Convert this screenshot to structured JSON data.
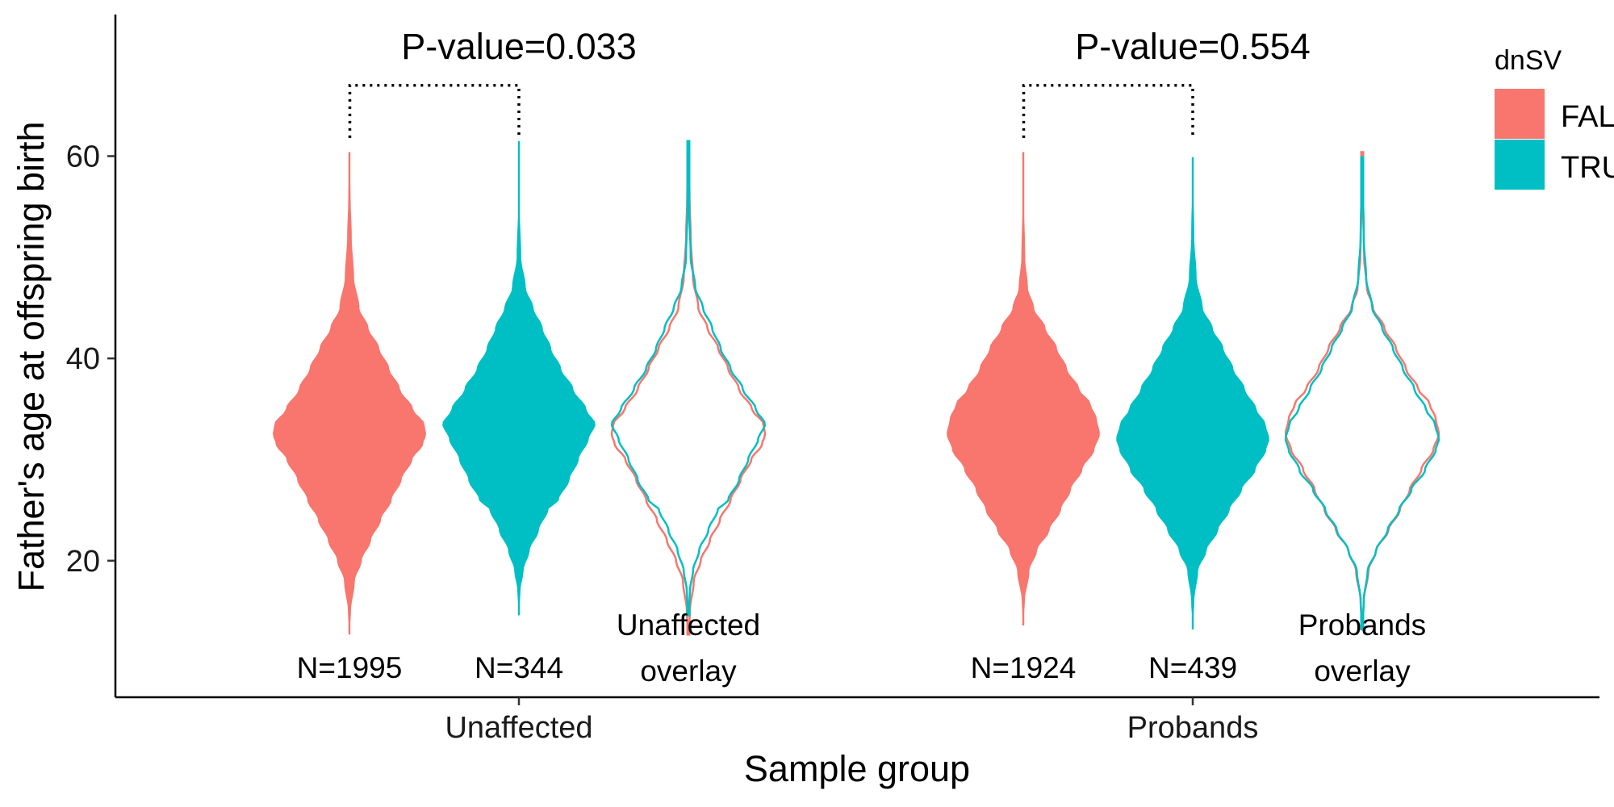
{
  "chart_data": {
    "type": "violin",
    "xlabel": "Sample group",
    "ylabel": "Father's age at offspring birth",
    "ylim": [
      6.5,
      74
    ],
    "y_ticks": [
      20,
      40,
      60
    ],
    "categories": [
      "Unaffected",
      "Probands"
    ],
    "grid": false,
    "legend": {
      "title": "dnSV",
      "position": "top-right",
      "entries": [
        {
          "label": "FALSE",
          "color": "#F8766D"
        },
        {
          "label": "TRUE",
          "color": "#00BFC4"
        }
      ]
    },
    "colors": {
      "FALSE": "#F8766D",
      "TRUE": "#00BFC4"
    },
    "groups": [
      {
        "name": "Unaffected",
        "p_value_label": "P-value=0.033",
        "bracket_y": 67,
        "violins": [
          {
            "dnSV": "FALSE",
            "label": "N=1995",
            "n": 1995,
            "min": 12.7,
            "max": 60.4,
            "center_x": -0.6,
            "profile": [
              [
                12.7,
                0.0
              ],
              [
                15,
                0.02
              ],
              [
                18,
                0.07
              ],
              [
                20,
                0.16
              ],
              [
                22,
                0.28
              ],
              [
                24,
                0.41
              ],
              [
                26,
                0.55
              ],
              [
                28,
                0.68
              ],
              [
                30,
                0.82
              ],
              [
                31.5,
                0.96
              ],
              [
                32.5,
                1.0
              ],
              [
                33.5,
                0.98
              ],
              [
                35,
                0.83
              ],
              [
                37,
                0.66
              ],
              [
                39,
                0.52
              ],
              [
                41,
                0.39
              ],
              [
                43,
                0.25
              ],
              [
                45,
                0.13
              ],
              [
                48,
                0.06
              ],
              [
                52,
                0.03
              ],
              [
                56,
                0.015
              ],
              [
                60.4,
                0.0
              ]
            ]
          },
          {
            "dnSV": "TRUE",
            "label": "N=344",
            "n": 344,
            "min": 14.6,
            "max": 61.5,
            "center_x": 0.0,
            "profile": [
              [
                14.6,
                0.0
              ],
              [
                17,
                0.02
              ],
              [
                19,
                0.06
              ],
              [
                21,
                0.14
              ],
              [
                23,
                0.26
              ],
              [
                25,
                0.38
              ],
              [
                26,
                0.52
              ],
              [
                28,
                0.66
              ],
              [
                30,
                0.78
              ],
              [
                32,
                0.91
              ],
              [
                33.5,
                1.0
              ],
              [
                35,
                0.88
              ],
              [
                37,
                0.71
              ],
              [
                39,
                0.55
              ],
              [
                41,
                0.42
              ],
              [
                43,
                0.31
              ],
              [
                45,
                0.19
              ],
              [
                47,
                0.09
              ],
              [
                50,
                0.03
              ],
              [
                55,
                0.01
              ],
              [
                61.5,
                0.0
              ]
            ]
          }
        ],
        "overlay": {
          "label": "Unaffected overlay",
          "center_x": 0.6
        }
      },
      {
        "name": "Probands",
        "p_value_label": "P-value=0.554",
        "bracket_y": 67,
        "violins": [
          {
            "dnSV": "FALSE",
            "label": "N=1924",
            "n": 1924,
            "min": 13.6,
            "max": 60.4,
            "center_x": -0.6,
            "profile": [
              [
                13.6,
                0.0
              ],
              [
                16,
                0.02
              ],
              [
                19,
                0.08
              ],
              [
                21,
                0.18
              ],
              [
                23,
                0.34
              ],
              [
                25,
                0.49
              ],
              [
                27,
                0.62
              ],
              [
                29,
                0.77
              ],
              [
                31,
                0.93
              ],
              [
                32.5,
                1.0
              ],
              [
                34,
                0.96
              ],
              [
                35.5,
                0.88
              ],
              [
                37,
                0.73
              ],
              [
                39,
                0.57
              ],
              [
                41,
                0.44
              ],
              [
                43,
                0.29
              ],
              [
                45,
                0.14
              ],
              [
                47,
                0.06
              ],
              [
                50,
                0.025
              ],
              [
                55,
                0.012
              ],
              [
                60.4,
                0.0
              ]
            ]
          },
          {
            "dnSV": "TRUE",
            "label": "N=439",
            "n": 439,
            "min": 13.2,
            "max": 59.9,
            "center_x": 0.0,
            "profile": [
              [
                13.2,
                0.0
              ],
              [
                16,
                0.02
              ],
              [
                19,
                0.07
              ],
              [
                21,
                0.18
              ],
              [
                23,
                0.33
              ],
              [
                25,
                0.48
              ],
              [
                27,
                0.64
              ],
              [
                29,
                0.82
              ],
              [
                31,
                0.96
              ],
              [
                32,
                1.0
              ],
              [
                33.5,
                0.95
              ],
              [
                35,
                0.83
              ],
              [
                37,
                0.68
              ],
              [
                39,
                0.53
              ],
              [
                41,
                0.4
              ],
              [
                43,
                0.26
              ],
              [
                45,
                0.13
              ],
              [
                48,
                0.05
              ],
              [
                52,
                0.02
              ],
              [
                59.9,
                0.0
              ]
            ]
          }
        ],
        "overlay": {
          "label": "Probands overlay",
          "center_x": 0.6
        }
      }
    ]
  }
}
